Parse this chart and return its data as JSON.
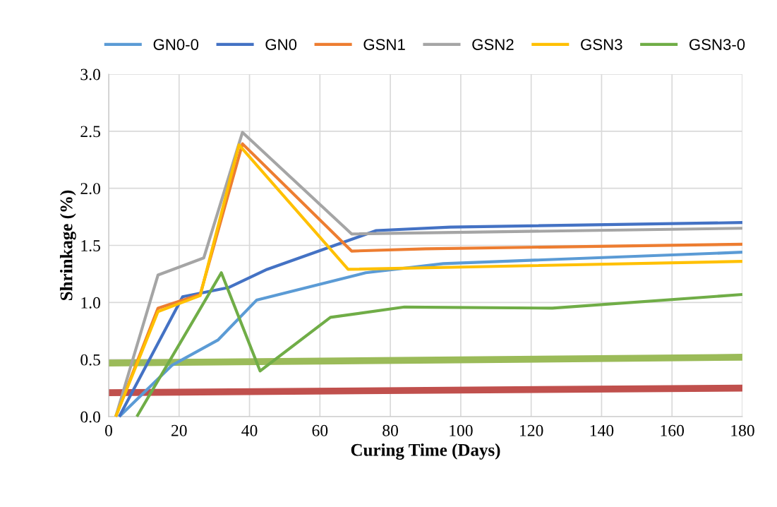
{
  "chart_data": {
    "type": "line",
    "xlabel": "Curing Time (Days)",
    "ylabel": "Shrinkage (%)",
    "xlim": [
      0,
      180
    ],
    "xticks": [
      0,
      20,
      40,
      60,
      80,
      100,
      120,
      140,
      160,
      180
    ],
    "ylim": [
      0,
      3.0
    ],
    "yticks": [
      {
        "value": 0,
        "label": "0.0"
      },
      {
        "value": 0.5,
        "label": "0.5"
      },
      {
        "value": 1.0,
        "label": "1.0"
      },
      {
        "value": 1.5,
        "label": "1.5"
      },
      {
        "value": 2.0,
        "label": "2.0"
      },
      {
        "value": 2.5,
        "label": "2.5"
      },
      {
        "value": 3.0,
        "label": "3.0"
      }
    ],
    "grid": true,
    "legend": "top",
    "marker": "none",
    "line_style": "solid",
    "series": [
      {
        "name": "GN0-0",
        "color": "#5b9bd5",
        "x": [
          3,
          18,
          31,
          42,
          73,
          95,
          180
        ],
        "values": [
          0,
          0.45,
          0.67,
          1.02,
          1.26,
          1.34,
          1.44
        ]
      },
      {
        "name": "GN0",
        "color": "#4472c4",
        "x": [
          3,
          21,
          34,
          45,
          76,
          97,
          180
        ],
        "values": [
          0,
          1.05,
          1.13,
          1.29,
          1.63,
          1.66,
          1.7
        ]
      },
      {
        "name": "GSN1",
        "color": "#ed7d31",
        "x": [
          2,
          14,
          26,
          38,
          69,
          90,
          180
        ],
        "values": [
          0,
          0.95,
          1.07,
          2.39,
          1.45,
          1.47,
          1.51
        ]
      },
      {
        "name": "GSN2",
        "color": "#a5a5a5",
        "x": [
          2,
          14,
          27,
          38,
          69,
          180
        ],
        "values": [
          0,
          1.24,
          1.39,
          2.49,
          1.6,
          1.65
        ]
      },
      {
        "name": "GSN3",
        "color": "#ffc000",
        "x": [
          2,
          14,
          26,
          37,
          68,
          180
        ],
        "values": [
          0,
          0.92,
          1.06,
          2.38,
          1.29,
          1.36
        ]
      },
      {
        "name": "GSN3-0",
        "color": "#70ad47",
        "x": [
          8,
          32,
          43,
          63,
          84,
          126,
          180
        ],
        "values": [
          0,
          1.26,
          0.4,
          0.87,
          0.96,
          0.95,
          1.07
        ]
      },
      {
        "color": "#9bbb59",
        "x": [
          0,
          180
        ],
        "values": [
          0.47,
          0.52
        ]
      },
      {
        "color": "#c0504d",
        "x": [
          0,
          180
        ],
        "values": [
          0.21,
          0.25
        ]
      }
    ]
  }
}
